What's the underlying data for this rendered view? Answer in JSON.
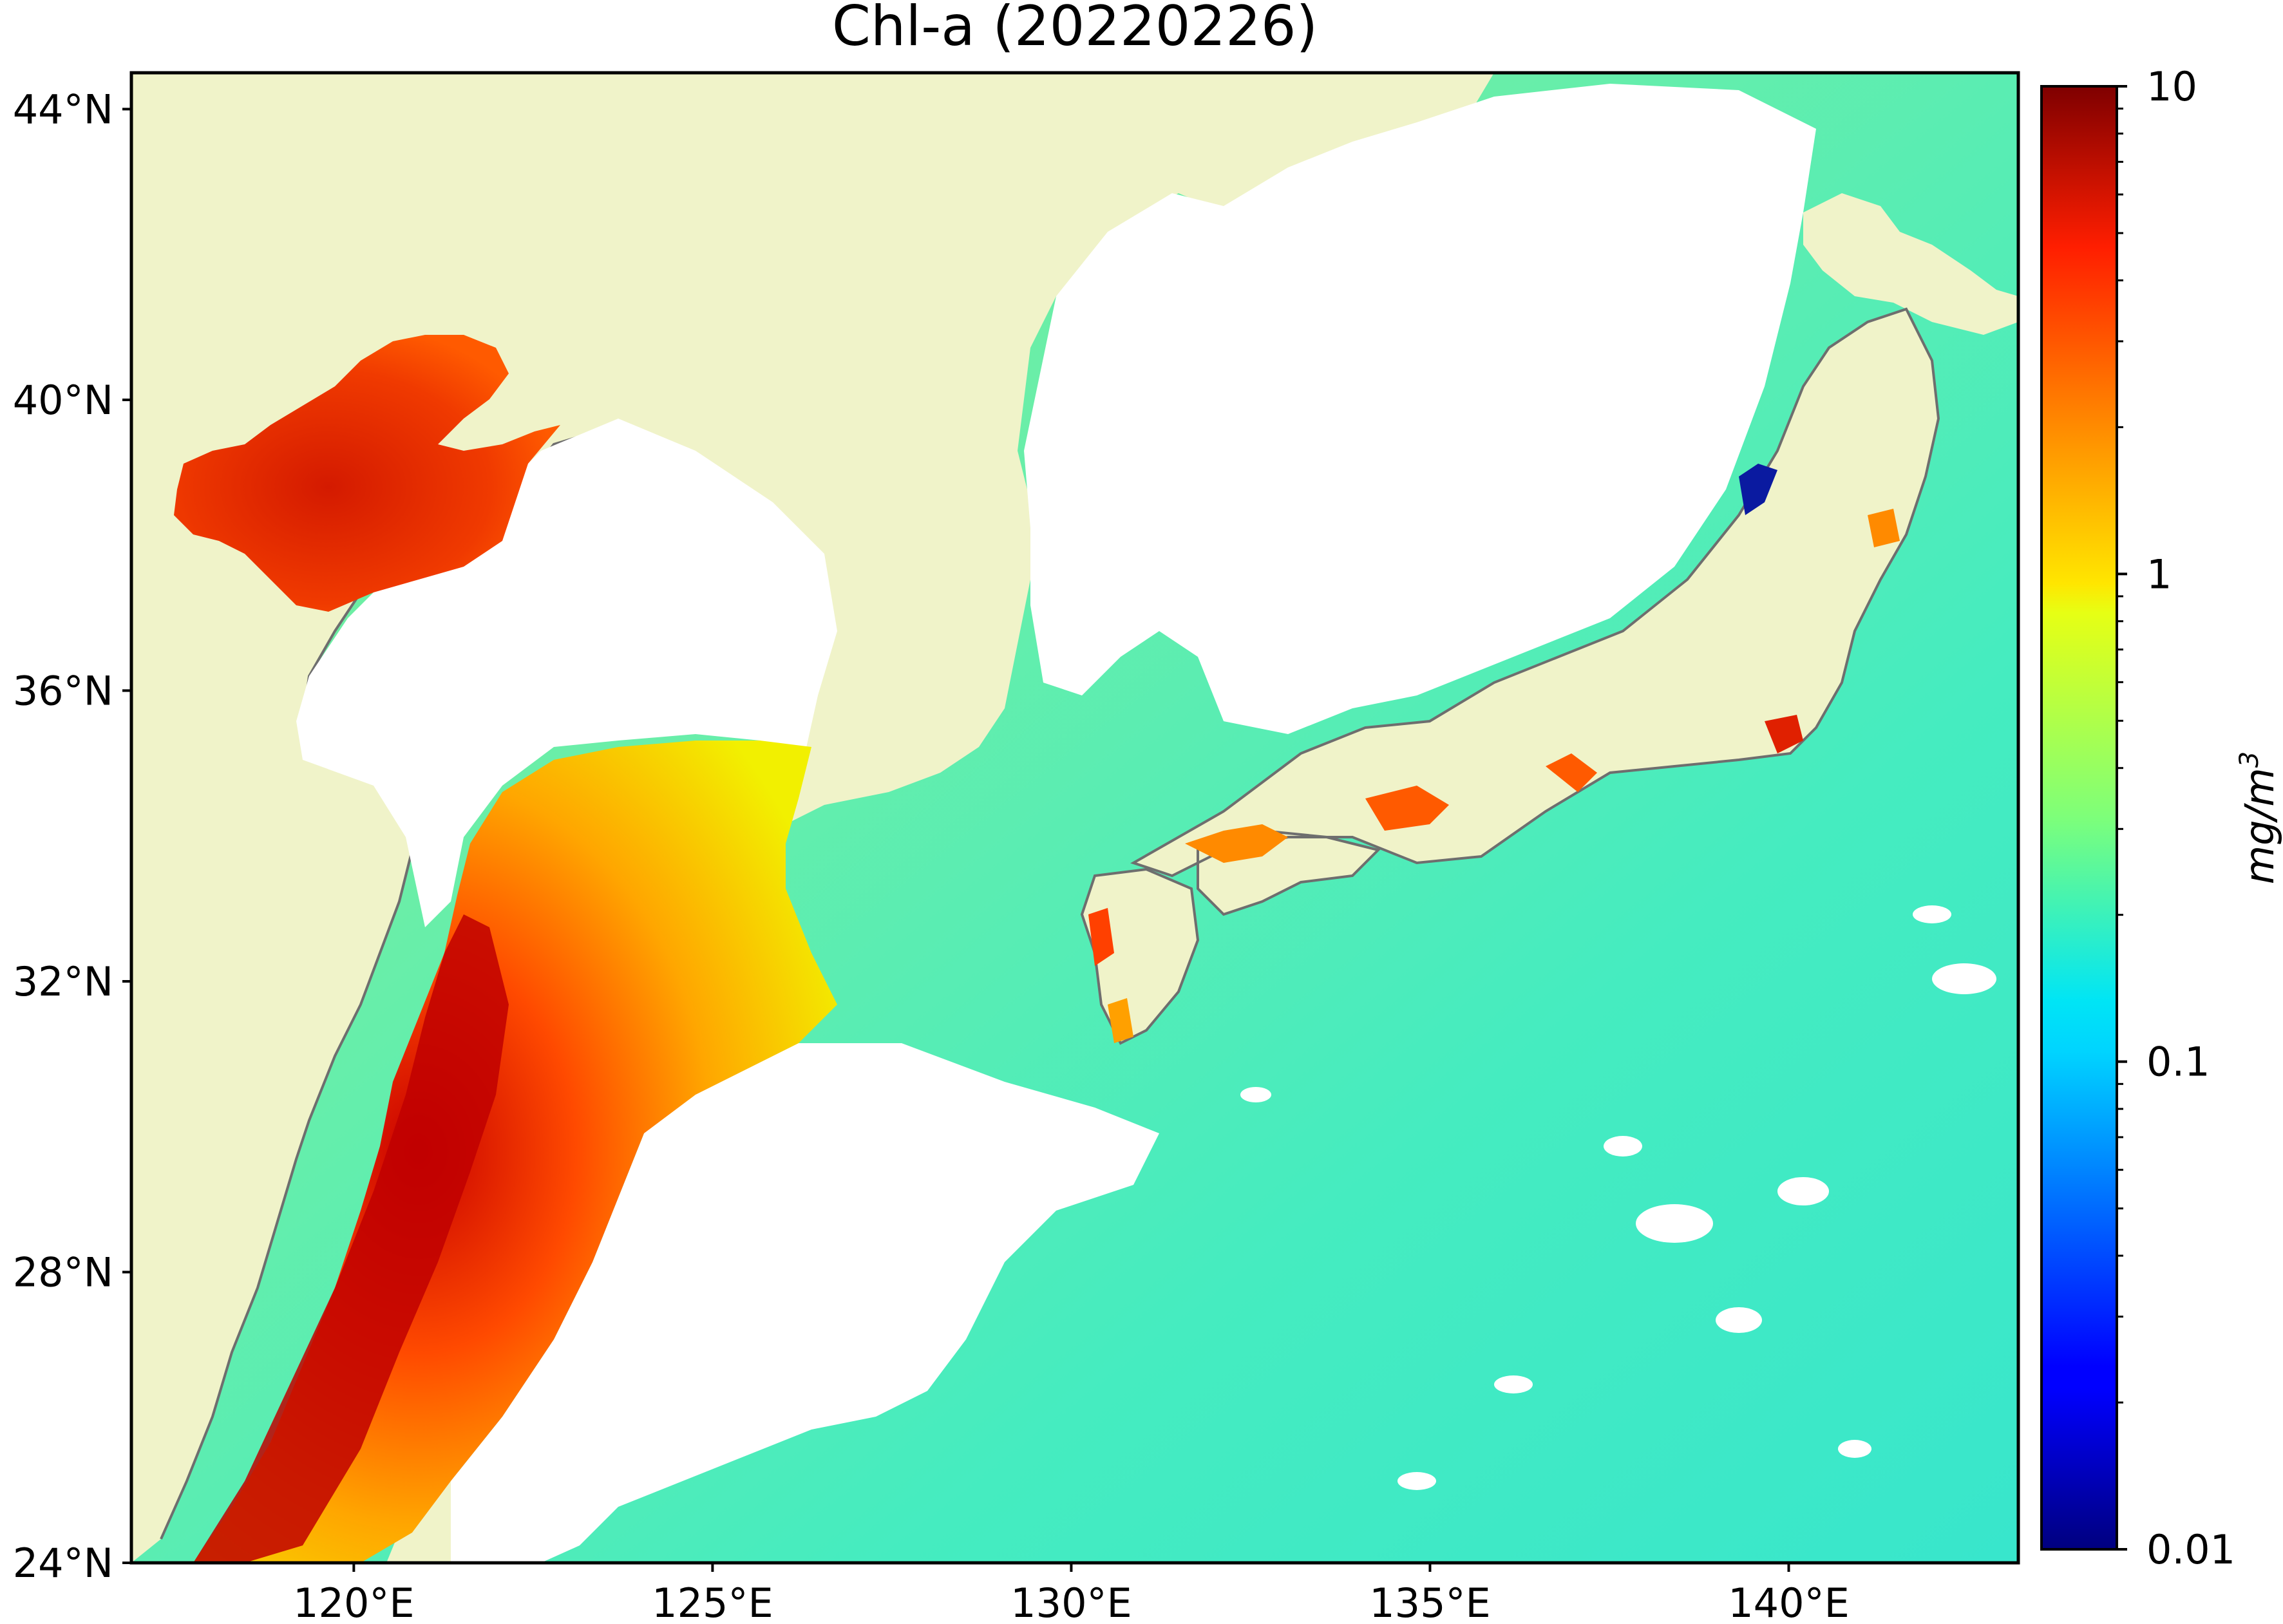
{
  "title": "Chl-a (20220226)",
  "map": {
    "lon_range": [
      116.9,
      143.2
    ],
    "lat_range": [
      24.0,
      44.5
    ],
    "lat_ticks": [
      {
        "value": 44,
        "label": "44°N"
      },
      {
        "value": 40,
        "label": "40°N"
      },
      {
        "value": 36,
        "label": "36°N"
      },
      {
        "value": 32,
        "label": "32°N"
      },
      {
        "value": 28,
        "label": "28°N"
      },
      {
        "value": 24,
        "label": "24°N"
      }
    ],
    "lon_ticks": [
      {
        "value": 120,
        "label": "120°E"
      },
      {
        "value": 125,
        "label": "125°E"
      },
      {
        "value": 130,
        "label": "130°E"
      },
      {
        "value": 135,
        "label": "135°E"
      },
      {
        "value": 140,
        "label": "140°E"
      }
    ],
    "colors": {
      "land": "#f0f3c9",
      "cloud_no_data": "#ffffff",
      "coastline": "#6e6e6e"
    }
  },
  "colorbar": {
    "label": "mg/m",
    "label_superscript": "3",
    "scale": "log",
    "range": [
      0.01,
      10
    ],
    "colormap": "jet",
    "major_ticks": [
      {
        "value": 10,
        "label": "10"
      },
      {
        "value": 1,
        "label": "1"
      },
      {
        "value": 0.1,
        "label": "0.1"
      },
      {
        "value": 0.01,
        "label": "0.01"
      }
    ]
  }
}
